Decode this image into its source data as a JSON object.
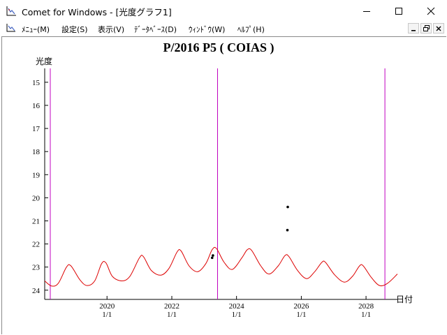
{
  "window": {
    "title": "Comet for Windows - [光度グラフ1]",
    "icons": {
      "app": "graph-axis-icon",
      "minimize": "minimize-icon",
      "maximize": "maximize-icon",
      "close": "close-icon"
    }
  },
  "menubar": {
    "items": [
      {
        "label": "ﾒﾆｭｰ(M)"
      },
      {
        "label": "設定(S)"
      },
      {
        "label": "表示(V)"
      },
      {
        "label": "ﾃﾞｰﾀﾍﾞｰｽ(D)"
      },
      {
        "label": "ｳｨﾝﾄﾞｳ(W)"
      },
      {
        "label": "ﾍﾙﾌﾟ(H)"
      }
    ],
    "mdi_icons": [
      "mdi-minimize-icon",
      "mdi-restore-icon",
      "mdi-close-icon"
    ]
  },
  "chart_data": {
    "type": "line",
    "title": "P/2016 P5 ( COIAS )",
    "ylabel": "光度",
    "xlabel": "日付",
    "ylim": [
      24.4,
      14.4
    ],
    "y_inverted": true,
    "yticks": [
      15,
      16,
      17,
      18,
      19,
      20,
      21,
      22,
      23,
      24
    ],
    "xlim": [
      "2018-01-28",
      "2028-12-20"
    ],
    "xticks": [
      {
        "date": "2020-01-01",
        "year": "2020",
        "md": "1/1"
      },
      {
        "date": "2022-01-01",
        "year": "2022",
        "md": "1/1"
      },
      {
        "date": "2024-01-01",
        "year": "2024",
        "md": "1/1"
      },
      {
        "date": "2026-01-01",
        "year": "2026",
        "md": "1/1"
      },
      {
        "date": "2028-01-01",
        "year": "2028",
        "md": "1/1"
      }
    ],
    "vlines": [
      {
        "date": "2018-04-01",
        "color": "#c000c0"
      },
      {
        "date": "2023-06-01",
        "color": "#c000c0"
      },
      {
        "date": "2028-08-01",
        "color": "#c000c0"
      }
    ],
    "series": [
      {
        "color": "#dd0000",
        "style": "line",
        "points": [
          [
            "2018-01-28",
            23.6
          ],
          [
            "2018-04-15",
            23.82
          ],
          [
            "2018-07-01",
            23.7
          ],
          [
            "2018-10-01",
            23.0
          ],
          [
            "2018-11-20",
            22.95
          ],
          [
            "2019-03-01",
            23.55
          ],
          [
            "2019-05-20",
            23.8
          ],
          [
            "2019-08-15",
            23.6
          ],
          [
            "2019-11-01",
            22.85
          ],
          [
            "2019-12-20",
            22.82
          ],
          [
            "2020-03-01",
            23.4
          ],
          [
            "2020-06-15",
            23.6
          ],
          [
            "2020-09-15",
            23.4
          ],
          [
            "2021-01-01",
            22.6
          ],
          [
            "2021-02-15",
            22.55
          ],
          [
            "2021-05-15",
            23.15
          ],
          [
            "2021-09-01",
            23.35
          ],
          [
            "2021-12-01",
            23.05
          ],
          [
            "2022-03-01",
            22.35
          ],
          [
            "2022-04-15",
            22.3
          ],
          [
            "2022-07-15",
            22.95
          ],
          [
            "2022-10-20",
            23.2
          ],
          [
            "2023-01-20",
            22.85
          ],
          [
            "2023-04-01",
            22.25
          ],
          [
            "2023-05-20",
            22.2
          ],
          [
            "2023-08-15",
            22.8
          ],
          [
            "2023-11-15",
            23.1
          ],
          [
            "2024-03-01",
            22.6
          ],
          [
            "2024-05-01",
            22.25
          ],
          [
            "2024-06-20",
            22.28
          ],
          [
            "2024-10-01",
            22.95
          ],
          [
            "2025-01-01",
            23.3
          ],
          [
            "2025-04-15",
            22.95
          ],
          [
            "2025-07-01",
            22.5
          ],
          [
            "2025-08-15",
            22.55
          ],
          [
            "2025-11-20",
            23.15
          ],
          [
            "2026-03-01",
            23.5
          ],
          [
            "2026-06-01",
            23.2
          ],
          [
            "2026-08-20",
            22.8
          ],
          [
            "2026-10-01",
            22.8
          ],
          [
            "2027-01-15",
            23.35
          ],
          [
            "2027-05-01",
            23.65
          ],
          [
            "2027-08-01",
            23.4
          ],
          [
            "2027-10-20",
            22.95
          ],
          [
            "2027-12-01",
            22.95
          ],
          [
            "2028-03-01",
            23.45
          ],
          [
            "2028-06-01",
            23.8
          ],
          [
            "2028-09-01",
            23.7
          ],
          [
            "2028-12-20",
            23.3
          ]
        ]
      },
      {
        "color": "#000000",
        "style": "scatter",
        "points": [
          [
            "2023-04-01",
            22.6
          ],
          [
            "2023-04-10",
            22.5
          ],
          [
            "2025-08-01",
            20.4
          ],
          [
            "2025-07-28",
            21.4
          ]
        ]
      }
    ]
  }
}
